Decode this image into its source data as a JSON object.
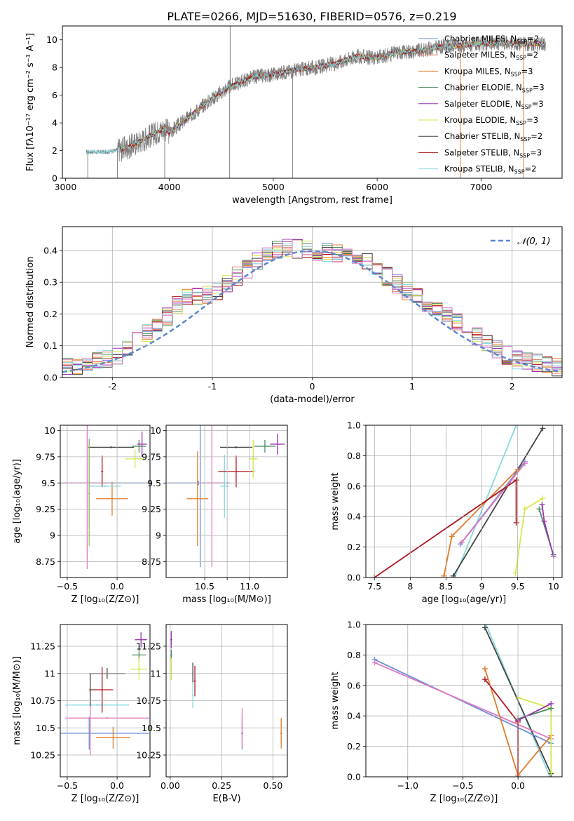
{
  "figure": {
    "title": "PLATE=0266, MJD=51630, FIBERID=0576, z=0.219"
  },
  "chart_data": [
    {
      "id": "spectrum",
      "type": "line",
      "xlabel": "wavelength [Angstrom, rest frame]",
      "ylabel": "Flux [fλ10⁻¹⁷ erg cm⁻² s⁻¹ A⁻¹]",
      "xlim": [
        2970,
        7780
      ],
      "ylim": [
        0,
        11
      ],
      "xticks": [
        3000,
        4000,
        5000,
        6000,
        7000
      ],
      "yticks": [
        0,
        2,
        4,
        6,
        8,
        10
      ],
      "grid": false,
      "legend_position": "top-right",
      "observed_trend": {
        "x": [
          3200,
          3400,
          3600,
          3800,
          3950,
          4000,
          4200,
          4400,
          4600,
          4800,
          5000,
          5200,
          5400,
          5600,
          5800,
          6000,
          6200,
          6400,
          6600,
          6800,
          7000,
          7200,
          7400,
          7620
        ],
        "y": [
          1.9,
          1.9,
          2.2,
          3.0,
          3.6,
          3.3,
          4.5,
          5.7,
          6.7,
          7.3,
          7.5,
          7.8,
          8.0,
          8.3,
          8.8,
          8.7,
          9.1,
          9.2,
          9.5,
          9.6,
          9.7,
          9.8,
          9.7,
          9.7
        ]
      },
      "spikes": [
        {
          "x": 3215,
          "y": 0
        },
        {
          "x": 3500,
          "y": 0
        },
        {
          "x": 3955,
          "y": 0
        },
        {
          "x": 4580,
          "y": 0
        },
        {
          "x": 4585,
          "y": 11
        },
        {
          "x": 5185,
          "y": 0
        },
        {
          "x": 6800,
          "y": 0
        },
        {
          "x": 7410,
          "y": 0
        }
      ],
      "series": [
        {
          "name": "Chabrier MILES, N_SSP=2",
          "color": "#6a8fd6"
        },
        {
          "name": "Salpeter MILES, N_SSP=2",
          "color": "#e07a5f"
        },
        {
          "name": "Kroupa MILES, N_SSP=3",
          "color": "#e07b2a"
        },
        {
          "name": "Chabrier ELODIE, N_SSP=3",
          "color": "#4a8c5c"
        },
        {
          "name": "Salpeter ELODIE, N_SSP=3",
          "color": "#9b30b0"
        },
        {
          "name": "Kroupa ELODIE, N_SSP=3",
          "color": "#d4e84a"
        },
        {
          "name": "Chabrier STELIB, N_SSP=2",
          "color": "#444444"
        },
        {
          "name": "Salpeter STELIB, N_SSP=3",
          "color": "#b0161e"
        },
        {
          "name": "Kroupa STELIB, N_SSP=2",
          "color": "#86d9e3"
        }
      ]
    },
    {
      "id": "residuals",
      "type": "bar",
      "xlabel": "(data-model)/error",
      "ylabel": "Normed distribution",
      "xlim": [
        -2.5,
        2.5
      ],
      "ylim": [
        0,
        0.475
      ],
      "xticks": [
        -2,
        -1,
        0,
        1,
        2
      ],
      "yticks": [
        0.0,
        0.1,
        0.2,
        0.3,
        0.4
      ],
      "grid": true,
      "legend": "𝒩(0, 1)",
      "legend_position": "top-right",
      "bin_width": 0.1,
      "gaussian": {
        "mean": 0,
        "sigma": 1
      },
      "envelope": {
        "x": [
          -2.5,
          -2.0,
          -1.7,
          -1.5,
          -1.3,
          -1.0,
          -0.7,
          -0.5,
          -0.3,
          0.0,
          0.3,
          0.5,
          0.7,
          1.0,
          1.3,
          1.5,
          1.7,
          2.0,
          2.5
        ],
        "y": [
          0.03,
          0.06,
          0.13,
          0.17,
          0.25,
          0.26,
          0.33,
          0.38,
          0.41,
          0.4,
          0.39,
          0.38,
          0.33,
          0.26,
          0.21,
          0.16,
          0.12,
          0.06,
          0.03
        ]
      },
      "series_colors": [
        "#6a8fd6",
        "#e07a5f",
        "#e07b2a",
        "#4a8c5c",
        "#9b30b0",
        "#d4e84a",
        "#444444",
        "#b0161e",
        "#86d9e3",
        "#e377c2"
      ]
    },
    {
      "id": "age_vs_Z",
      "type": "scatter",
      "xlabel": "Z [log₁₀(Z/Z⊙)]",
      "ylabel": "age  [log₁₀(age/yr)]",
      "xlim": [
        -0.57,
        0.33
      ],
      "ylim": [
        8.6,
        10.05
      ],
      "xticks": [
        -0.5,
        0.0
      ],
      "xticklabels": [
        "−0.5",
        "0.0"
      ],
      "yticks": [
        8.75,
        9.0,
        9.25,
        9.5,
        9.75,
        10.0
      ],
      "grid": true,
      "points": [
        {
          "x": -0.28,
          "y": 9.5,
          "xerr": 0.6,
          "yerr": 0.42,
          "color": "#6a8fd6"
        },
        {
          "x": -0.3,
          "y": 9.5,
          "xerr": 0.22,
          "yerr": 0.82,
          "color": "#e377c2"
        },
        {
          "x": -0.05,
          "y": 9.35,
          "xerr": 0.16,
          "yerr": 0.16,
          "color": "#e07b2a"
        },
        {
          "x": -0.15,
          "y": 9.61,
          "xerr": 0.01,
          "yerr": 0.15,
          "color": "#b0161e"
        },
        {
          "x": -0.12,
          "y": 9.47,
          "xerr": 0.16,
          "yerr": 0.01,
          "color": "#86d9e3"
        },
        {
          "x": -0.06,
          "y": 9.84,
          "xerr": 0.23,
          "yerr": 0.01,
          "color": "#444444"
        },
        {
          "x": 0.22,
          "y": 9.85,
          "xerr": 0.07,
          "yerr": 0.06,
          "color": "#4a8c5c"
        },
        {
          "x": 0.25,
          "y": 9.87,
          "xerr": 0.05,
          "yerr": 0.12,
          "color": "#9b30b0"
        },
        {
          "x": 0.18,
          "y": 9.73,
          "xerr": 0.1,
          "yerr": 0.09,
          "color": "#d4e84a"
        },
        {
          "x": -0.28,
          "y": 9.4,
          "xerr": 0.01,
          "yerr": 0.5,
          "color": "#a0c060"
        }
      ]
    },
    {
      "id": "age_vs_mass",
      "type": "scatter",
      "xlabel": "mass [log₁₀(M/M⊙)]",
      "ylabel": "",
      "xlim": [
        10.07,
        11.42
      ],
      "ylim": [
        8.6,
        10.05
      ],
      "xticks": [
        10.5,
        10.75,
        11.0
      ],
      "xticklabels": [
        "10.5",
        "",
        "11.0"
      ],
      "yticks": [
        8.75,
        9.0,
        9.25,
        9.5,
        9.75,
        10.0
      ],
      "grid": true,
      "points": [
        {
          "x": 10.43,
          "y": 9.5,
          "xerr": 0.35,
          "yerr": 0.02,
          "color": "#6a8fd6"
        },
        {
          "x": 10.45,
          "y": 9.5,
          "xerr": 0.01,
          "yerr": 0.8,
          "color": "#6a8fd6"
        },
        {
          "x": 10.42,
          "y": 9.35,
          "xerr": 0.12,
          "yerr": 0.45,
          "color": "#e07b2a"
        },
        {
          "x": 10.58,
          "y": 9.5,
          "xerr": 0.15,
          "yerr": 0.8,
          "color": "#e377c2"
        },
        {
          "x": 10.72,
          "y": 9.47,
          "xerr": 0.05,
          "yerr": 0.3,
          "color": "#86d9e3"
        },
        {
          "x": 10.85,
          "y": 9.84,
          "xerr": 0.18,
          "yerr": 0.01,
          "color": "#444444"
        },
        {
          "x": 10.85,
          "y": 9.61,
          "xerr": 0.2,
          "yerr": 0.15,
          "color": "#b0161e"
        },
        {
          "x": 11.04,
          "y": 9.73,
          "xerr": 0.05,
          "yerr": 0.18,
          "color": "#d4e84a"
        },
        {
          "x": 11.17,
          "y": 9.85,
          "xerr": 0.12,
          "yerr": 0.06,
          "color": "#4a8c5c"
        },
        {
          "x": 11.31,
          "y": 9.87,
          "xerr": 0.08,
          "yerr": 0.1,
          "color": "#9b30b0"
        }
      ]
    },
    {
      "id": "mass_weight_vs_age",
      "type": "line",
      "xlabel": "age  [log₁₀(age/yr)]",
      "ylabel": "mass weight",
      "xlim": [
        7.38,
        10.12
      ],
      "ylim": [
        0.0,
        1.0
      ],
      "xticks": [
        7.5,
        8.0,
        8.5,
        9.0,
        9.5,
        10.0
      ],
      "yticks": [
        0.0,
        0.2,
        0.4,
        0.6,
        0.8,
        1.0
      ],
      "grid": true,
      "series": [
        {
          "color": "#86d9e3",
          "x": [
            8.62,
            9.48
          ],
          "y": [
            0.0,
            1.0
          ]
        },
        {
          "color": "#444444",
          "x": [
            8.6,
            9.85
          ],
          "y": [
            0.01,
            0.98
          ]
        },
        {
          "color": "#6a8fd6",
          "x": [
            8.7,
            9.6
          ],
          "y": [
            0.22,
            0.76
          ]
        },
        {
          "color": "#e377c2",
          "x": [
            8.72,
            9.6
          ],
          "y": [
            0.23,
            0.75
          ]
        },
        {
          "color": "#e07b2a",
          "x": [
            8.47,
            8.58,
            9.5
          ],
          "y": [
            0.01,
            0.27,
            0.71
          ]
        },
        {
          "color": "#b0161e",
          "x": [
            7.5,
            9.48,
            9.48
          ],
          "y": [
            0.0,
            0.64,
            0.36
          ]
        },
        {
          "color": "#d4e84a",
          "x": [
            9.47,
            9.6,
            9.85
          ],
          "y": [
            0.03,
            0.45,
            0.52
          ]
        },
        {
          "color": "#4a8c5c",
          "x": [
            9.8,
            10.0
          ],
          "y": [
            0.45,
            0.15
          ]
        },
        {
          "color": "#9b30b0",
          "x": [
            9.84,
            9.87,
            10.0
          ],
          "y": [
            0.48,
            0.37,
            0.14
          ]
        }
      ]
    },
    {
      "id": "mass_vs_Z",
      "type": "scatter",
      "xlabel": "Z [log₁₀(Z/Z⊙)]",
      "ylabel": "mass [log₁₀(M/M⊙)]",
      "xlim": [
        -0.57,
        0.33
      ],
      "ylim": [
        10.05,
        11.45
      ],
      "xticks": [
        -0.5,
        0.0
      ],
      "xticklabels": [
        "−0.5",
        "0.0"
      ],
      "yticks": [
        10.25,
        10.5,
        10.75,
        11.0,
        11.25
      ],
      "grid": true,
      "points": [
        {
          "x": -0.28,
          "y": 10.45,
          "xerr": 0.6,
          "yerr": 0.15,
          "color": "#6a8fd6"
        },
        {
          "x": -0.1,
          "y": 10.59,
          "xerr": 0.42,
          "yerr": 0.01,
          "color": "#e377c2"
        },
        {
          "x": -0.27,
          "y": 10.5,
          "xerr": 0.01,
          "yerr": 0.25,
          "color": "#e377c2"
        },
        {
          "x": -0.04,
          "y": 10.41,
          "xerr": 0.17,
          "yerr": 0.1,
          "color": "#e07b2a"
        },
        {
          "x": -0.2,
          "y": 10.71,
          "xerr": 0.32,
          "yerr": 0.01,
          "color": "#86d9e3"
        },
        {
          "x": -0.27,
          "y": 10.85,
          "xerr": 0.01,
          "yerr": 0.15,
          "color": "#86d9e3"
        },
        {
          "x": -0.15,
          "y": 10.85,
          "xerr": 0.11,
          "yerr": 0.21,
          "color": "#b0161e"
        },
        {
          "x": -0.1,
          "y": 11.0,
          "xerr": 0.18,
          "yerr": 0.05,
          "color": "#444444"
        },
        {
          "x": -0.27,
          "y": 10.85,
          "xerr": 0.01,
          "yerr": 0.15,
          "color": "#444444"
        },
        {
          "x": 0.22,
          "y": 11.17,
          "xerr": 0.07,
          "yerr": 0.07,
          "color": "#4a8c5c"
        },
        {
          "x": 0.24,
          "y": 11.31,
          "xerr": 0.06,
          "yerr": 0.07,
          "color": "#9b30b0"
        },
        {
          "x": 0.22,
          "y": 11.04,
          "xerr": 0.08,
          "yerr": 0.1,
          "color": "#d4e84a"
        }
      ]
    },
    {
      "id": "mass_vs_ebv",
      "type": "scatter",
      "xlabel": "E(B-V)",
      "ylabel": "",
      "xlim": [
        -0.02,
        0.57
      ],
      "ylim": [
        10.05,
        11.45
      ],
      "xticks": [
        0.0,
        0.25,
        0.5
      ],
      "xticklabels": [
        "0.00",
        "0.25",
        "0.50"
      ],
      "yticks": [
        10.25,
        10.5,
        10.75,
        11.0,
        11.25
      ],
      "grid": true,
      "points": [
        {
          "x": 0.005,
          "y": 11.31,
          "xerr": 0.005,
          "yerr": 0.08,
          "color": "#9b30b0"
        },
        {
          "x": 0.005,
          "y": 11.17,
          "xerr": 0.005,
          "yerr": 0.05,
          "color": "#4a8c5c"
        },
        {
          "x": 0.005,
          "y": 11.04,
          "xerr": 0.005,
          "yerr": 0.1,
          "color": "#d4e84a"
        },
        {
          "x": 0.11,
          "y": 11.0,
          "xerr": 0.005,
          "yerr": 0.1,
          "color": "#444444"
        },
        {
          "x": 0.12,
          "y": 10.93,
          "xerr": 0.005,
          "yerr": 0.14,
          "color": "#b0161e"
        },
        {
          "x": 0.11,
          "y": 10.8,
          "xerr": 0.005,
          "yerr": 0.12,
          "color": "#86d9e3"
        },
        {
          "x": 0.35,
          "y": 10.45,
          "xerr": 0.005,
          "yerr": 0.15,
          "color": "#6a8fd6"
        },
        {
          "x": 0.35,
          "y": 10.5,
          "xerr": 0.005,
          "yerr": 0.18,
          "color": "#e377c2"
        },
        {
          "x": 0.54,
          "y": 10.45,
          "xerr": 0.005,
          "yerr": 0.14,
          "color": "#e07b2a"
        }
      ]
    },
    {
      "id": "mass_weight_vs_Z",
      "type": "line",
      "xlabel": "Z [log₁₀(Z/Z⊙)]",
      "ylabel": "mass weight",
      "xlim": [
        -1.38,
        0.4
      ],
      "ylim": [
        0.0,
        1.0
      ],
      "xticks": [
        -1.0,
        -0.5,
        0.0
      ],
      "xticklabels": [
        "−1.0",
        "−0.5",
        "0.0"
      ],
      "yticks": [
        0.0,
        0.2,
        0.4,
        0.6,
        0.8,
        1.0
      ],
      "grid": true,
      "series": [
        {
          "color": "#86d9e3",
          "x": [
            -0.29,
            0.29
          ],
          "y": [
            1.0,
            0.0
          ]
        },
        {
          "color": "#444444",
          "x": [
            -0.3,
            0.3
          ],
          "y": [
            0.98,
            0.02
          ]
        },
        {
          "color": "#6a8fd6",
          "x": [
            -1.3,
            0.3
          ],
          "y": [
            0.77,
            0.22
          ]
        },
        {
          "color": "#e377c2",
          "x": [
            -1.3,
            0.3
          ],
          "y": [
            0.75,
            0.25
          ]
        },
        {
          "color": "#e07b2a",
          "x": [
            -0.3,
            0.0,
            0.3
          ],
          "y": [
            0.71,
            0.01,
            0.27
          ]
        },
        {
          "color": "#b0161e",
          "x": [
            -0.3,
            0.0,
            0.0
          ],
          "y": [
            0.64,
            0.36,
            0.0
          ]
        },
        {
          "color": "#d4e84a",
          "x": [
            0.0,
            0.3,
            0.3
          ],
          "y": [
            0.52,
            0.45,
            0.03
          ]
        },
        {
          "color": "#4a8c5c",
          "x": [
            0.0,
            0.3
          ],
          "y": [
            0.38,
            0.45
          ]
        },
        {
          "color": "#9b30b0",
          "x": [
            0.0,
            0.3
          ],
          "y": [
            0.37,
            0.48
          ]
        }
      ]
    }
  ]
}
